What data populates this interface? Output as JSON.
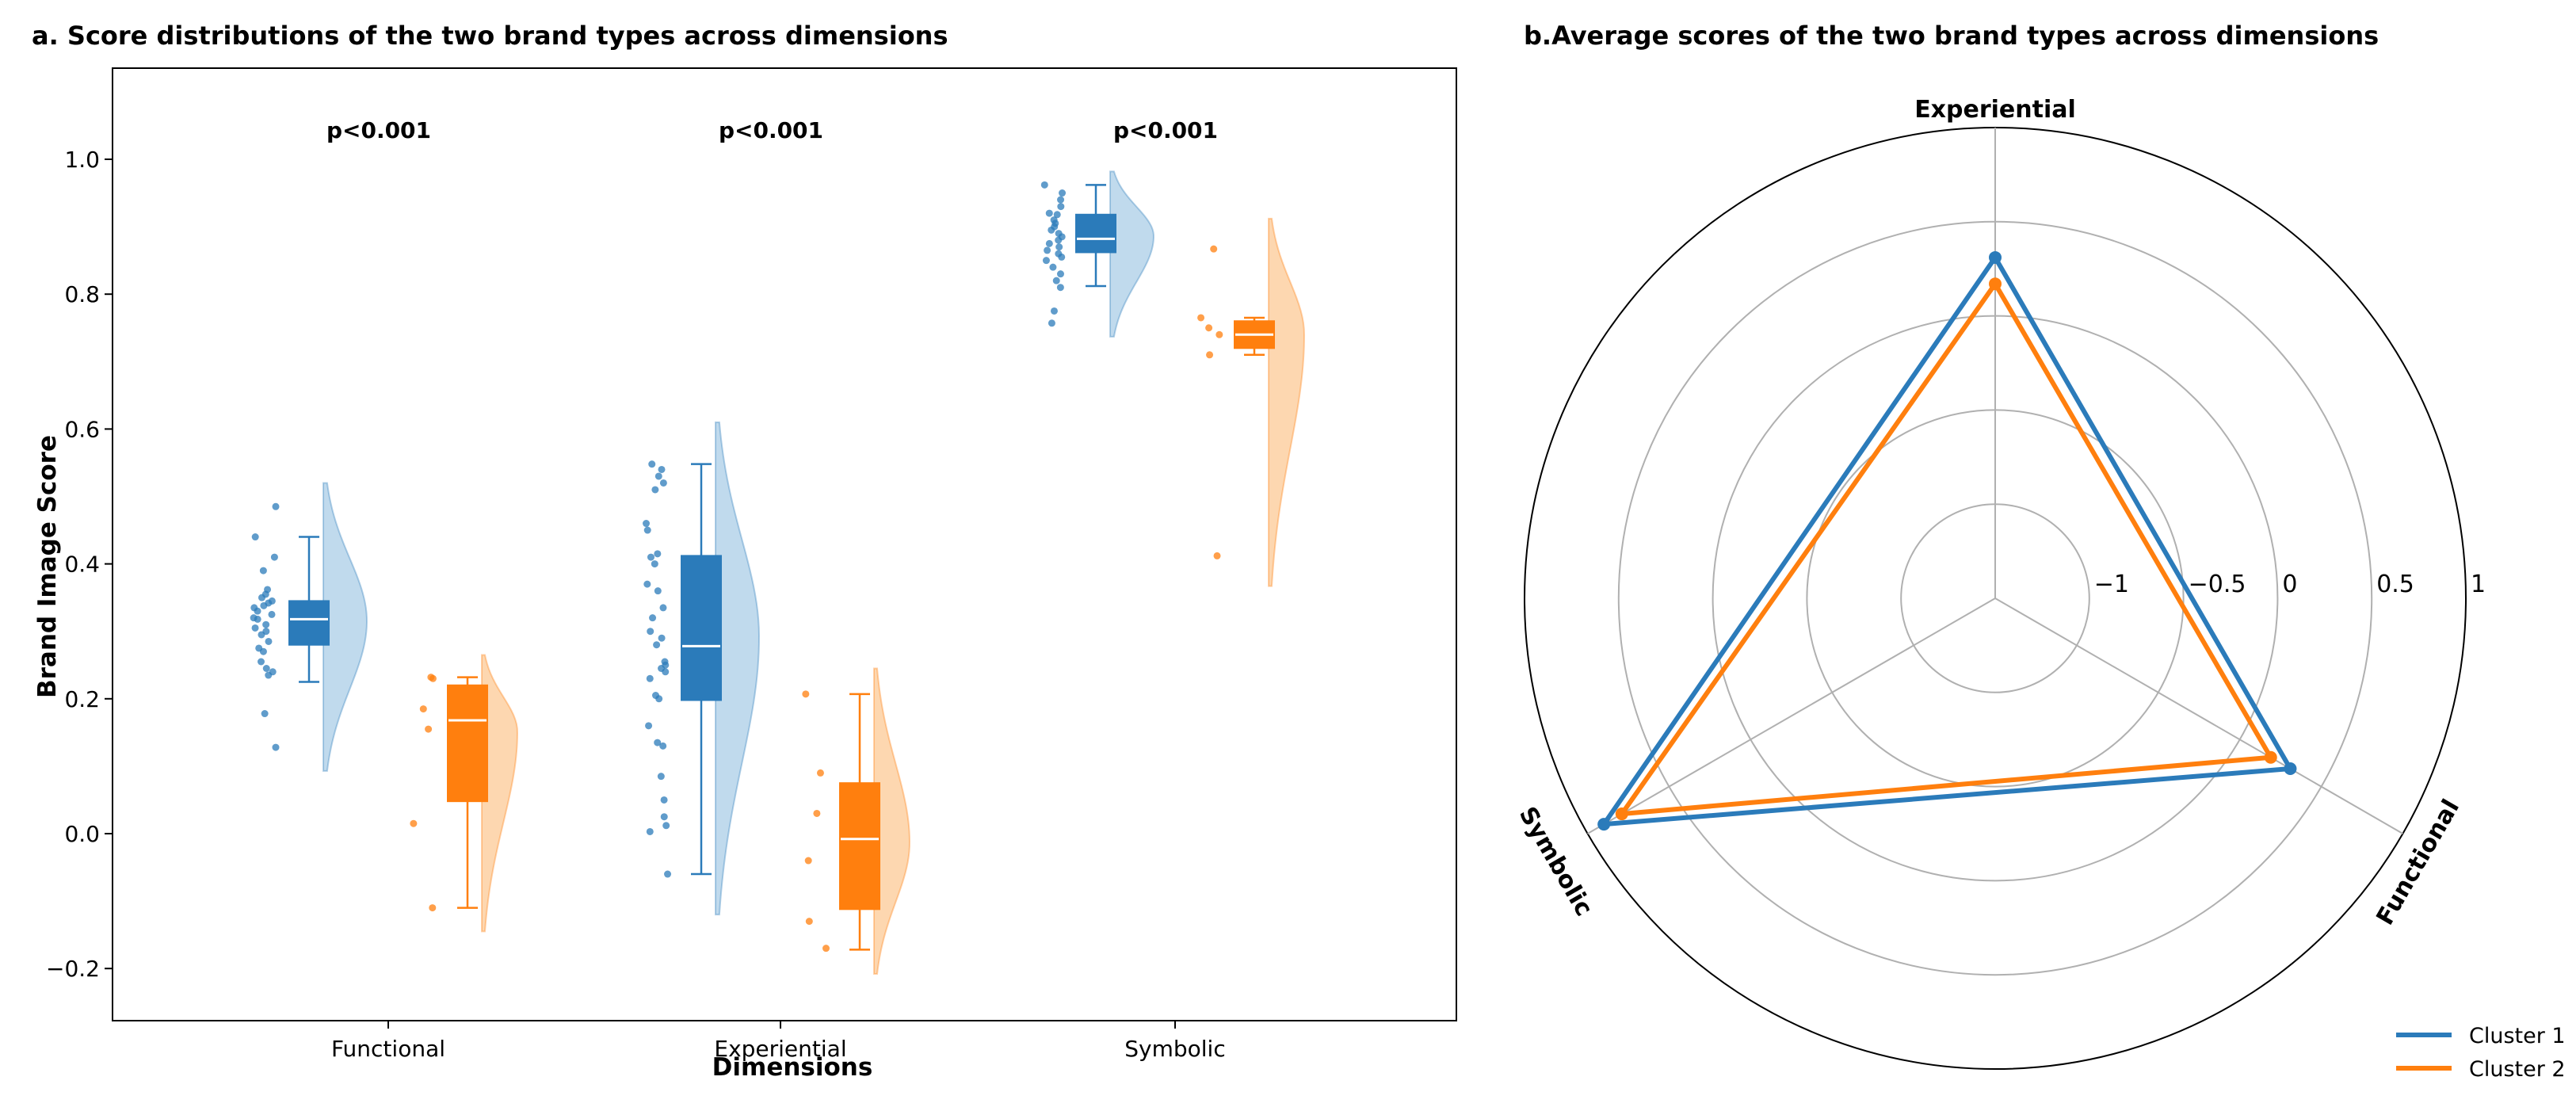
{
  "chart_data": [
    {
      "type": "raincloud",
      "title": "a. Score distributions of the two brand types across dimensions",
      "xlabel": "Dimensions",
      "ylabel": "Brand Image Score",
      "ylim": [
        -0.28,
        1.13
      ],
      "yticks": [
        "1.0",
        "0.8",
        "0.6",
        "0.4",
        "0.2",
        "0.0",
        "−0.2"
      ],
      "ytick_values": [
        1.0,
        0.8,
        0.6,
        0.4,
        0.2,
        0.0,
        -0.2
      ],
      "categories": [
        "Functional",
        "Experiential",
        "Symbolic"
      ],
      "annotations": [
        "p<0.001",
        "p<0.001",
        "p<0.001"
      ],
      "series": [
        {
          "name": "Cluster 1",
          "color": "#2b7bba",
          "fill": "#b5d4ea",
          "box": [
            {
              "whislo": 0.225,
              "q1": 0.28,
              "median": 0.318,
              "q3": 0.345,
              "whishi": 0.44
            },
            {
              "whislo": -0.06,
              "q1": 0.198,
              "median": 0.278,
              "q3": 0.412,
              "whishi": 0.548
            },
            {
              "whislo": 0.812,
              "q1": 0.862,
              "median": 0.882,
              "q3": 0.918,
              "whishi": 0.962
            }
          ],
          "violin_range": [
            [
              0.093,
              0.52
            ],
            [
              -0.12,
              0.61
            ],
            [
              0.737,
              0.982
            ]
          ],
          "points": [
            [
              0.485,
              0.44,
              0.41,
              0.39,
              0.362,
              0.355,
              0.35,
              0.345,
              0.342,
              0.338,
              0.335,
              0.33,
              0.325,
              0.32,
              0.318,
              0.31,
              0.305,
              0.3,
              0.295,
              0.285,
              0.275,
              0.27,
              0.255,
              0.245,
              0.24,
              0.235,
              0.178,
              0.128
            ],
            [
              0.548,
              0.54,
              0.53,
              0.52,
              0.51,
              0.46,
              0.45,
              0.415,
              0.41,
              0.4,
              0.37,
              0.36,
              0.335,
              0.32,
              0.3,
              0.29,
              0.28,
              0.255,
              0.25,
              0.245,
              0.24,
              0.23,
              0.205,
              0.2,
              0.16,
              0.135,
              0.13,
              0.085,
              0.05,
              0.025,
              0.012,
              0.003,
              -0.06
            ],
            [
              0.962,
              0.95,
              0.94,
              0.93,
              0.92,
              0.918,
              0.91,
              0.905,
              0.9,
              0.895,
              0.89,
              0.885,
              0.88,
              0.875,
              0.87,
              0.865,
              0.86,
              0.855,
              0.85,
              0.84,
              0.83,
              0.82,
              0.81,
              0.775,
              0.757
            ]
          ]
        },
        {
          "name": "Cluster 2",
          "color": "#ff7f0e",
          "fill": "#fdd0a2",
          "box": [
            {
              "whislo": -0.11,
              "q1": 0.048,
              "median": 0.168,
              "q3": 0.22,
              "whishi": 0.232
            },
            {
              "whislo": -0.172,
              "q1": -0.112,
              "median": -0.008,
              "q3": 0.075,
              "whishi": 0.207
            },
            {
              "whislo": 0.71,
              "q1": 0.72,
              "median": 0.74,
              "q3": 0.76,
              "whishi": 0.765
            }
          ],
          "violin_range": [
            [
              -0.145,
              0.265
            ],
            [
              -0.208,
              0.245
            ],
            [
              0.367,
              0.912
            ]
          ],
          "points": [
            [
              0.232,
              0.23,
              0.185,
              0.155,
              0.015,
              -0.11
            ],
            [
              0.207,
              0.09,
              0.03,
              -0.04,
              -0.13,
              -0.17
            ],
            [
              0.867,
              0.765,
              0.75,
              0.74,
              0.71,
              0.412
            ]
          ]
        }
      ]
    },
    {
      "type": "radar",
      "title": "b.Average scores of the two brand types across dimensions",
      "axes": [
        "Experiential",
        "Functional",
        "Symbolic"
      ],
      "r_range": [
        -1.5,
        1
      ],
      "r_ticks": [
        "−1",
        "−0.5",
        "0",
        "0.5",
        "1"
      ],
      "r_tick_values": [
        -1,
        -0.5,
        0,
        0.5,
        1
      ],
      "series": [
        {
          "name": "Cluster 1",
          "color": "#2b7bba",
          "values": [
            0.31,
            0.31,
            0.9
          ]
        },
        {
          "name": "Cluster 2",
          "color": "#ff7f0e",
          "values": [
            0.17,
            0.19,
            0.79
          ]
        }
      ],
      "legend": [
        "Cluster 1",
        "Cluster 2"
      ],
      "legend_loc": "lower-right"
    }
  ]
}
